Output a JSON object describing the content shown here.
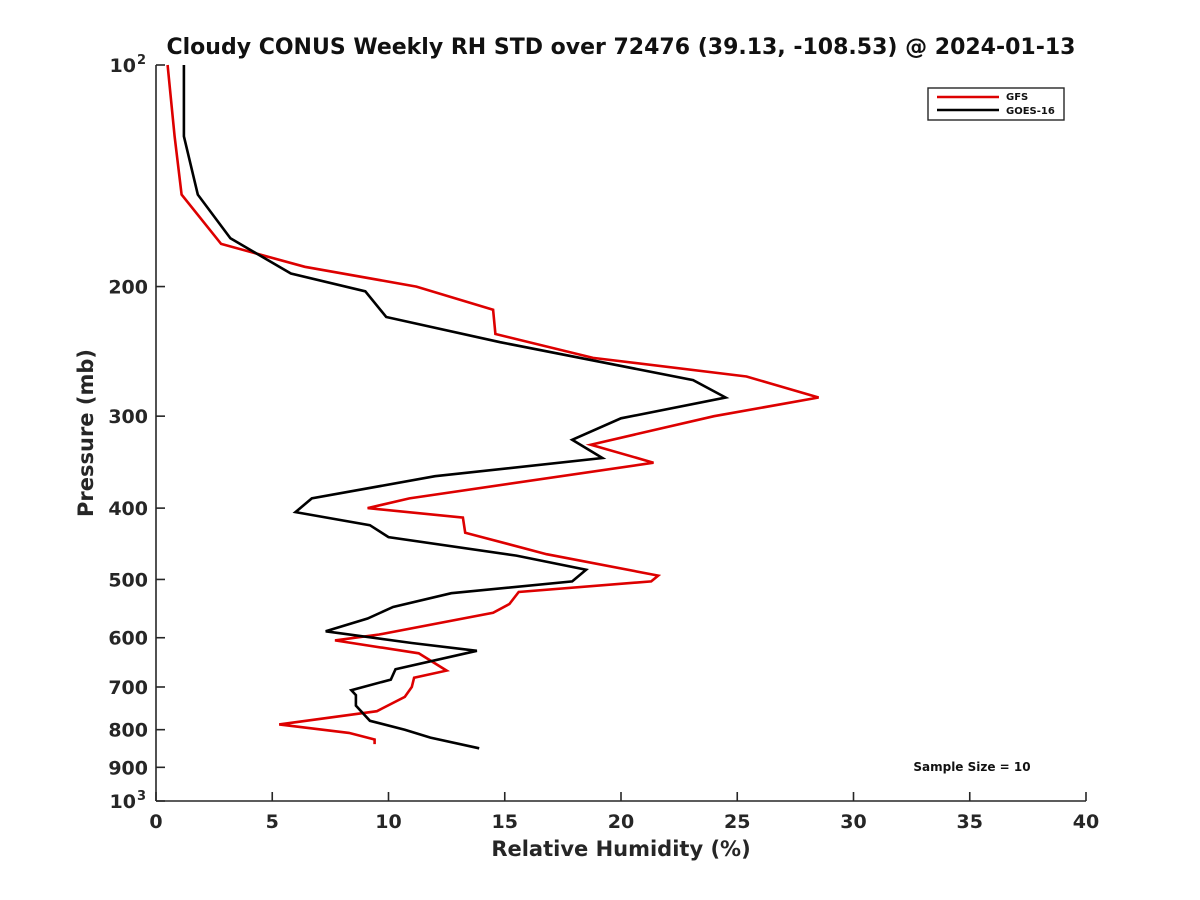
{
  "chart_data": {
    "type": "line",
    "title": "Cloudy CONUS Weekly RH STD over 72476 (39.13, -108.53) @ 2024-01-13",
    "xlabel": "Relative Humidity (%)",
    "ylabel": "Pressure (mb)",
    "xlim": [
      0,
      40
    ],
    "ylim": [
      100,
      1000
    ],
    "y_scale": "log",
    "y_reversed": true,
    "x_ticks": [
      "0",
      "5",
      "10",
      "15",
      "20",
      "25",
      "30",
      "35",
      "40"
    ],
    "y_ticks": [
      {
        "value": 100,
        "base": "10",
        "exp": "2"
      },
      {
        "value": 200,
        "base": "200",
        "exp": ""
      },
      {
        "value": 300,
        "base": "300",
        "exp": ""
      },
      {
        "value": 400,
        "base": "400",
        "exp": ""
      },
      {
        "value": 500,
        "base": "500",
        "exp": ""
      },
      {
        "value": 600,
        "base": "600",
        "exp": ""
      },
      {
        "value": 700,
        "base": "700",
        "exp": ""
      },
      {
        "value": 800,
        "base": "800",
        "exp": ""
      },
      {
        "value": 900,
        "base": "900",
        "exp": ""
      },
      {
        "value": 1000,
        "base": "10",
        "exp": "3"
      }
    ],
    "legend_position": "top-right",
    "annotation": "Sample Size = 10",
    "series": [
      {
        "name": "GFS",
        "color": "#dd0000",
        "points": [
          [
            0.5,
            100
          ],
          [
            0.8,
            125
          ],
          [
            1.1,
            150
          ],
          [
            2.8,
            175
          ],
          [
            6.4,
            188
          ],
          [
            11.2,
            200
          ],
          [
            14.5,
            215
          ],
          [
            14.6,
            232
          ],
          [
            18.8,
            250
          ],
          [
            25.4,
            265
          ],
          [
            28.5,
            283
          ],
          [
            24.0,
            300
          ],
          [
            18.7,
            328
          ],
          [
            21.4,
            347
          ],
          [
            10.9,
            388
          ],
          [
            9.1,
            400
          ],
          [
            13.2,
            412
          ],
          [
            13.3,
            432
          ],
          [
            16.8,
            462
          ],
          [
            21.6,
            494
          ],
          [
            21.3,
            503
          ],
          [
            15.6,
            520
          ],
          [
            15.2,
            540
          ],
          [
            14.5,
            555
          ],
          [
            9.6,
            594
          ],
          [
            7.7,
            605
          ],
          [
            11.3,
            630
          ],
          [
            12.5,
            665
          ],
          [
            11.1,
            680
          ],
          [
            11.0,
            700
          ],
          [
            10.7,
            722
          ],
          [
            9.5,
            755
          ],
          [
            5.3,
            787
          ],
          [
            8.3,
            808
          ],
          [
            9.4,
            825
          ],
          [
            9.4,
            837
          ]
        ]
      },
      {
        "name": "GOES-16",
        "color": "#000000",
        "points": [
          [
            1.2,
            100
          ],
          [
            1.2,
            125
          ],
          [
            1.8,
            150
          ],
          [
            3.2,
            172
          ],
          [
            5.8,
            192
          ],
          [
            9.0,
            203
          ],
          [
            9.9,
            220
          ],
          [
            14.8,
            238
          ],
          [
            23.1,
            268
          ],
          [
            24.5,
            283
          ],
          [
            20.0,
            302
          ],
          [
            17.9,
            323
          ],
          [
            19.2,
            342
          ],
          [
            12.0,
            362
          ],
          [
            6.7,
            388
          ],
          [
            6.0,
            405
          ],
          [
            9.2,
            422
          ],
          [
            10.0,
            438
          ],
          [
            15.5,
            464
          ],
          [
            18.5,
            485
          ],
          [
            17.9,
            503
          ],
          [
            12.7,
            522
          ],
          [
            10.2,
            545
          ],
          [
            9.1,
            565
          ],
          [
            7.3,
            588
          ],
          [
            11.0,
            610
          ],
          [
            13.8,
            625
          ],
          [
            10.3,
            662
          ],
          [
            10.1,
            684
          ],
          [
            8.4,
            707
          ],
          [
            8.6,
            718
          ],
          [
            8.6,
            742
          ],
          [
            9.2,
            778
          ],
          [
            10.7,
            800
          ],
          [
            11.8,
            820
          ],
          [
            13.9,
            848
          ]
        ]
      }
    ]
  }
}
